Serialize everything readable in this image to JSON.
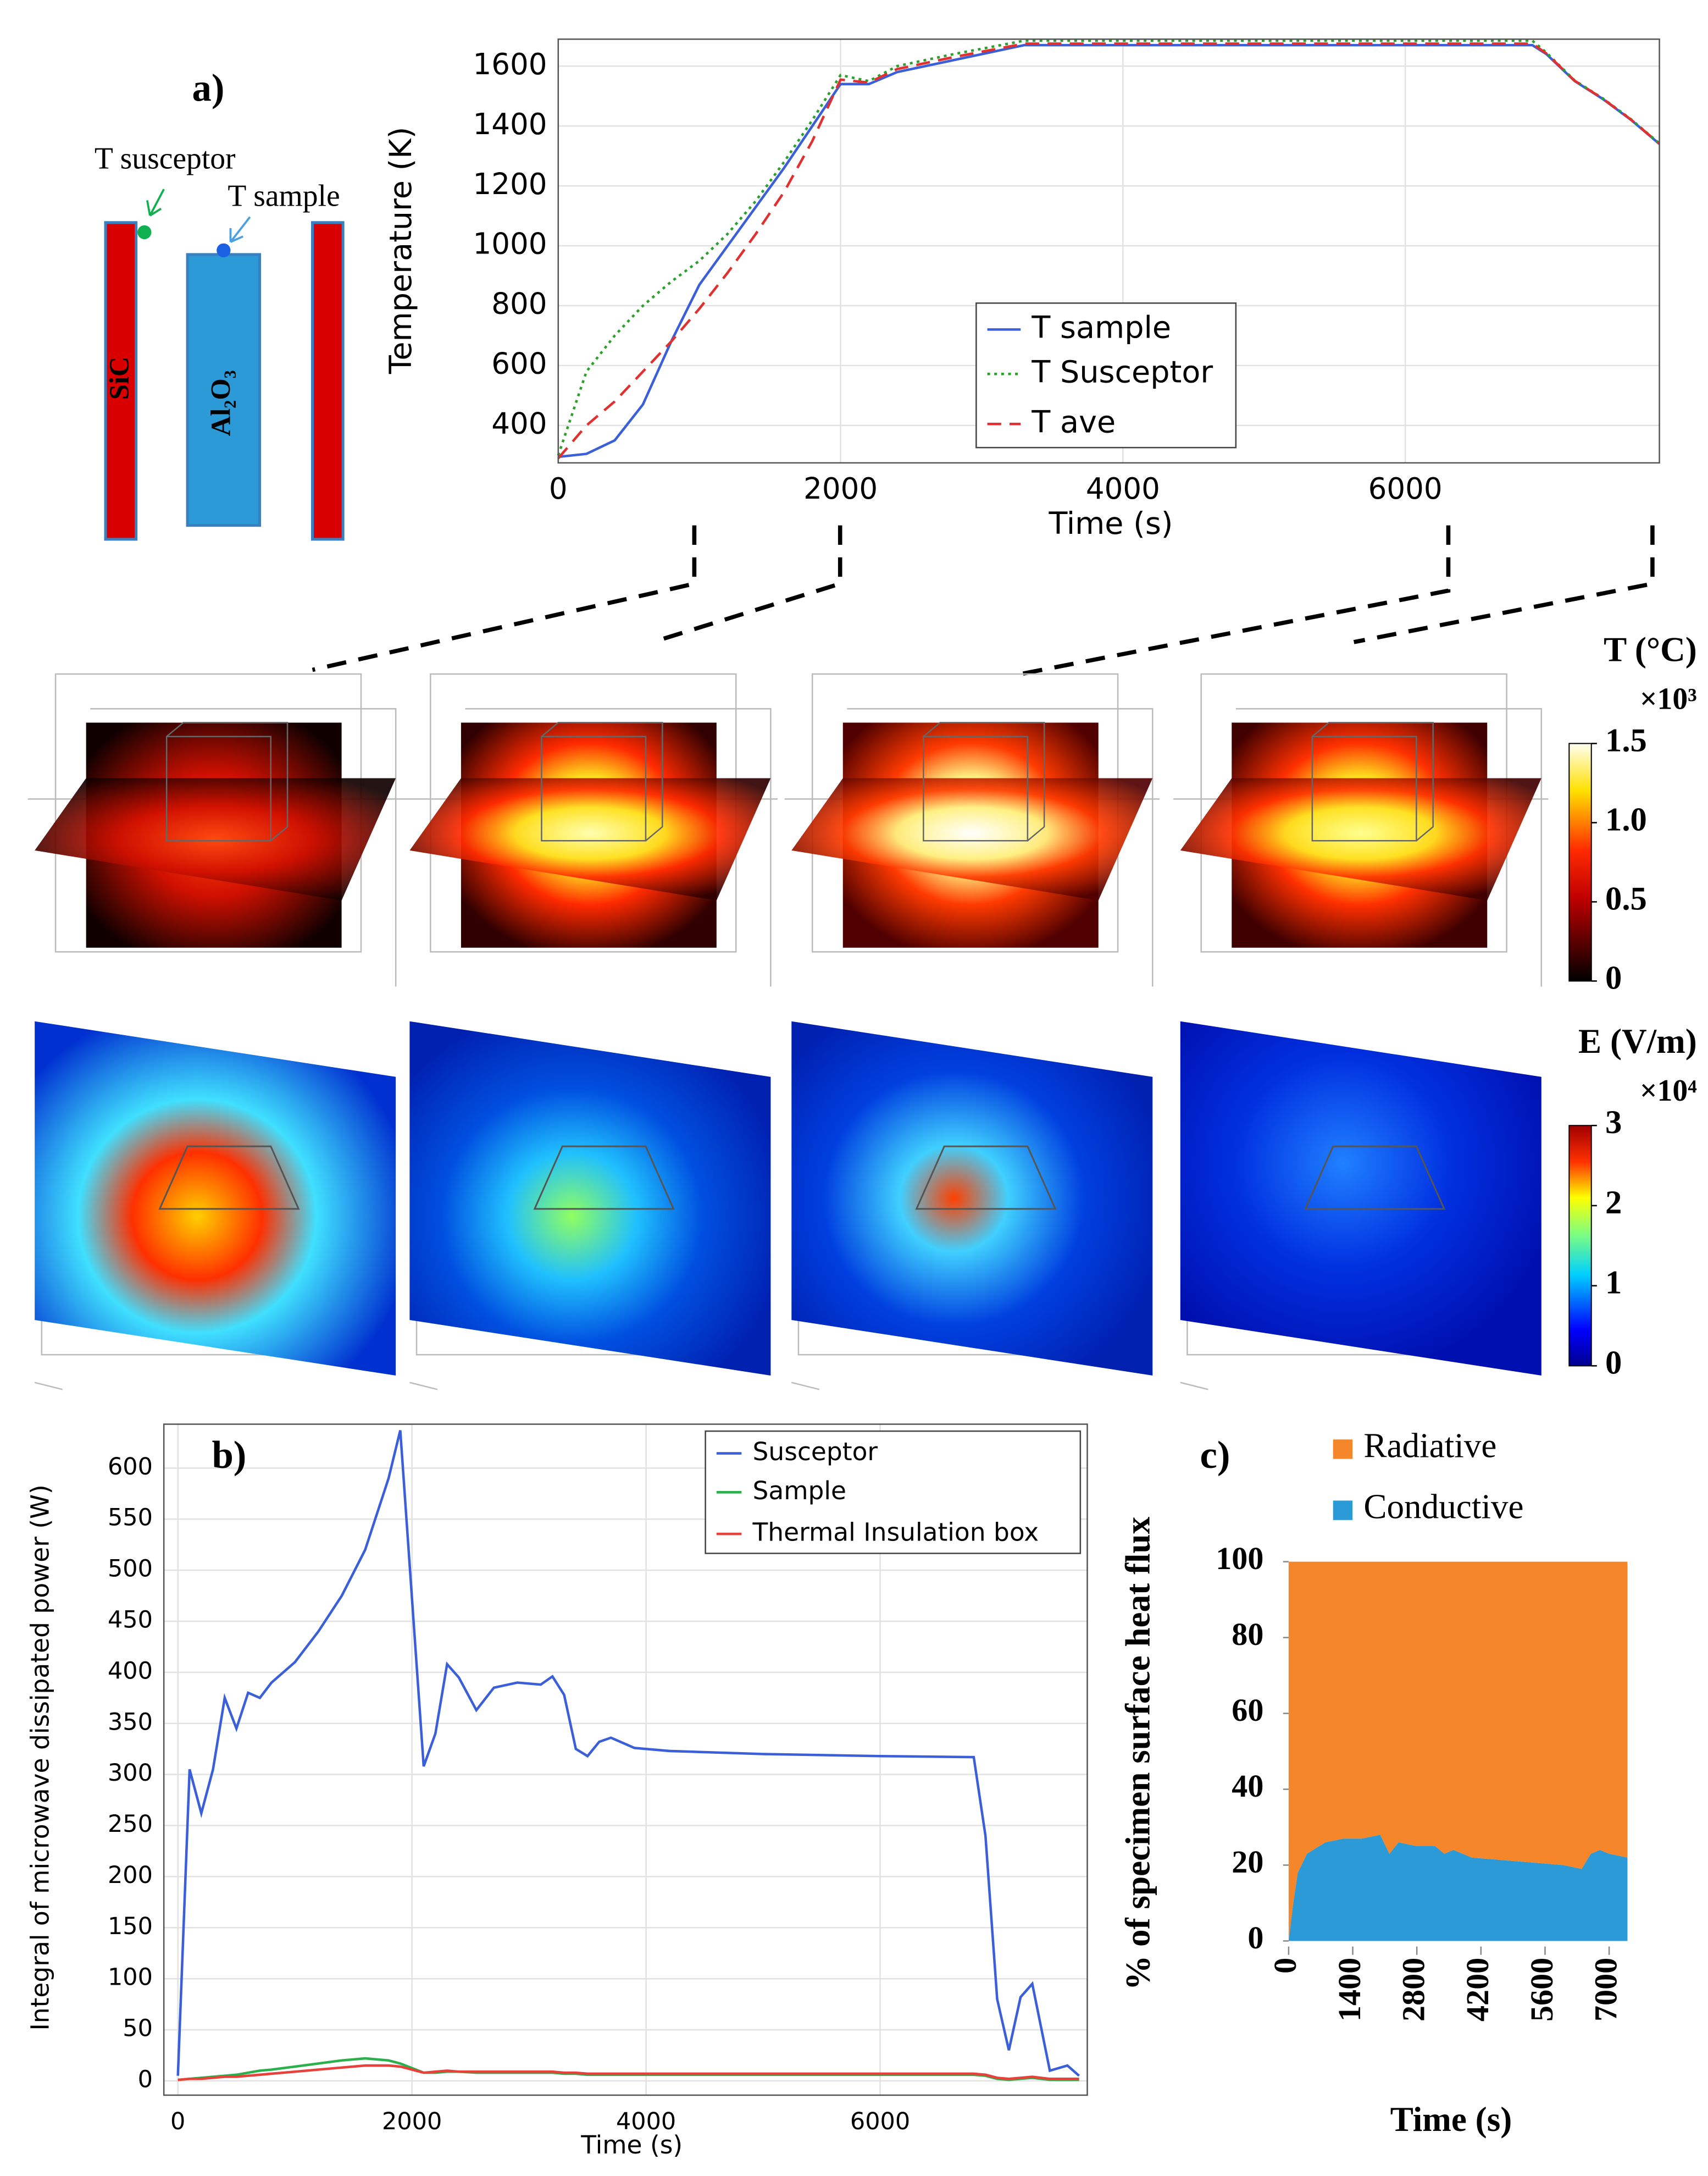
{
  "schematic": {
    "panel_label": "a)",
    "susceptor_label": "T susceptor",
    "sample_label": "T sample",
    "susceptor_material": "SiC",
    "sample_material": "Al₂O₃"
  },
  "colorbars": [
    {
      "title": "T (°C)",
      "multiplier": "×10³",
      "lim": [
        0,
        1.5
      ],
      "ticks": [
        0,
        0.5,
        {
          "value": 1,
          "label": "1.0"
        },
        1.5
      ]
    },
    {
      "title": "E (V/m)",
      "multiplier": "×10⁴",
      "lim": [
        0,
        3
      ],
      "ticks": [
        0,
        1,
        2,
        3
      ]
    }
  ],
  "chart_data": [
    {
      "type": "line",
      "xlabel": "Time (s)",
      "ylabel": "Temperature (K)",
      "grid": true,
      "xlim": [
        0,
        7800
      ],
      "ylim": [
        275,
        1690
      ],
      "xticks": [
        0,
        2000,
        4000,
        6000
      ],
      "yticks": [
        400,
        600,
        800,
        1000,
        1200,
        1400,
        1600
      ],
      "x": [
        0,
        200,
        400,
        600,
        800,
        1000,
        1200,
        1400,
        1600,
        1800,
        2000,
        2200,
        2400,
        2800,
        3300,
        4000,
        5000,
        6000,
        6900,
        7000,
        7200,
        7400,
        7600,
        7800
      ],
      "series": [
        {
          "name": "T sample",
          "color": "#3a5fd9",
          "style": "solid",
          "values": [
            295,
            305,
            350,
            470,
            680,
            870,
            1000,
            1130,
            1260,
            1400,
            1540,
            1540,
            1580,
            1620,
            1670,
            1670,
            1670,
            1670,
            1670,
            1640,
            1550,
            1490,
            1420,
            1340
          ]
        },
        {
          "name": "T Susceptor",
          "color": "#2ca02c",
          "style": "dotted",
          "values": [
            300,
            580,
            700,
            800,
            880,
            950,
            1040,
            1150,
            1280,
            1420,
            1570,
            1550,
            1600,
            1640,
            1685,
            1685,
            1685,
            1685,
            1685,
            1645,
            1552,
            1492,
            1422,
            1342
          ]
        },
        {
          "name": "T ave",
          "color": "#e03030",
          "style": "dashed",
          "values": [
            290,
            400,
            480,
            580,
            680,
            790,
            910,
            1040,
            1180,
            1350,
            1555,
            1545,
            1590,
            1630,
            1675,
            1675,
            1675,
            1675,
            1675,
            1642,
            1551,
            1491,
            1421,
            1341
          ]
        }
      ]
    },
    {
      "type": "line",
      "panel_label": "b)",
      "xlabel": "Time (s)",
      "ylabel": "Integral of microwave dissipated power (W)",
      "grid": true,
      "xlim": [
        -120,
        7770
      ],
      "ylim": [
        -14,
        643
      ],
      "xticks": [
        0,
        2000,
        4000,
        6000
      ],
      "yticks": [
        0,
        50,
        100,
        150,
        200,
        250,
        300,
        350,
        400,
        450,
        500,
        550,
        600
      ],
      "x": [
        0,
        100,
        200,
        300,
        400,
        500,
        600,
        700,
        800,
        1000,
        1200,
        1400,
        1600,
        1800,
        1900,
        2100,
        2200,
        2300,
        2400,
        2550,
        2700,
        2900,
        3100,
        3200,
        3300,
        3400,
        3500,
        3600,
        3700,
        3900,
        4200,
        5000,
        6000,
        6800,
        6900,
        7000,
        7100,
        7200,
        7300,
        7450,
        7600,
        7700
      ],
      "series": [
        {
          "name": "Susceptor",
          "color": "#3a5fd9",
          "style": "solid",
          "values": [
            5,
            305,
            262,
            305,
            375,
            345,
            380,
            375,
            390,
            410,
            440,
            475,
            520,
            590,
            637,
            308,
            340,
            408,
            395,
            363,
            385,
            390,
            388,
            396,
            378,
            325,
            318,
            332,
            336,
            326,
            323,
            320,
            318,
            317,
            240,
            80,
            30,
            82,
            95,
            10,
            15,
            5
          ]
        },
        {
          "name": "Sample",
          "color": "#2cb04c",
          "style": "solid",
          "values": [
            1,
            2,
            3,
            4,
            5,
            6,
            8,
            10,
            11,
            14,
            17,
            20,
            22,
            20,
            17,
            8,
            8,
            9,
            9,
            8,
            8,
            8,
            8,
            8,
            7,
            7,
            6,
            6,
            6,
            6,
            6,
            6,
            6,
            6,
            5,
            2,
            1,
            2,
            3,
            1,
            1,
            1
          ]
        },
        {
          "name": "Thermal Insulation box",
          "color": "#e8403a",
          "style": "solid",
          "values": [
            1,
            2,
            2,
            3,
            4,
            4,
            5,
            6,
            7,
            9,
            11,
            13,
            15,
            15,
            14,
            8,
            9,
            10,
            9,
            9,
            9,
            9,
            9,
            9,
            8,
            8,
            7,
            7,
            7,
            7,
            7,
            7,
            7,
            7,
            6,
            3,
            2,
            3,
            4,
            2,
            2,
            2
          ]
        }
      ]
    },
    {
      "type": "area",
      "panel_label": "c)",
      "xlabel": "Time (s)",
      "ylabel": "% of specimen surface heat flux",
      "grid": false,
      "xlim": [
        0,
        7400
      ],
      "ylim": [
        0,
        100
      ],
      "xticks": [
        0,
        1400,
        2800,
        4200,
        5600,
        7000
      ],
      "yticks": [
        0,
        20,
        40,
        60,
        80,
        100
      ],
      "x": [
        0,
        100,
        200,
        400,
        800,
        1200,
        1600,
        2000,
        2200,
        2400,
        2800,
        3200,
        3400,
        3600,
        4000,
        5000,
        6000,
        6400,
        6600,
        6800,
        7000,
        7400
      ],
      "series": [
        {
          "name": "Conductive",
          "color": "#2b9ad6",
          "values": [
            0,
            10,
            18,
            23,
            26,
            27,
            27,
            28,
            23,
            26,
            25,
            25,
            23,
            24,
            22,
            21,
            20,
            19,
            23,
            24,
            23,
            22
          ]
        },
        {
          "name": "Radiative",
          "color": "#f5862a",
          "values": [
            100,
            90,
            82,
            77,
            74,
            73,
            73,
            72,
            77,
            74,
            75,
            75,
            77,
            76,
            78,
            79,
            80,
            81,
            77,
            76,
            77,
            78
          ]
        }
      ]
    }
  ]
}
